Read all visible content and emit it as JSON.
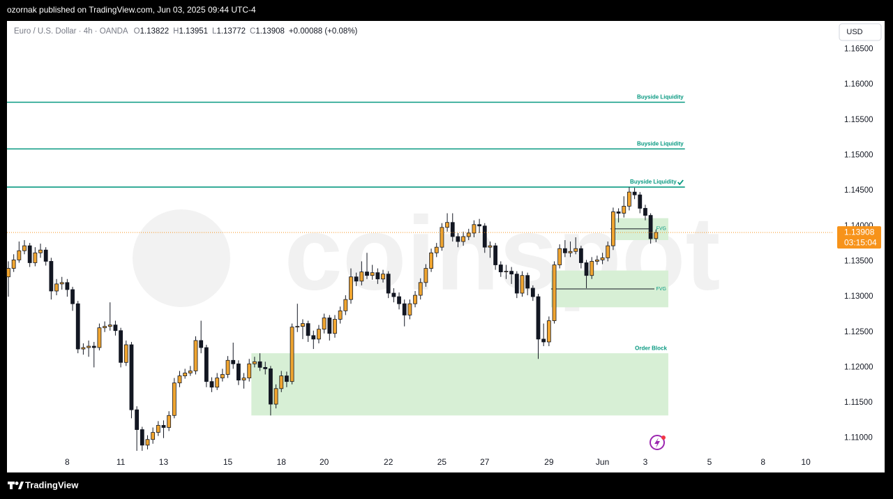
{
  "top_bar": {
    "text": "ozornak published on TradingView.com, Jun 03, 2025 09:44 UTC-4"
  },
  "bottom_bar": {
    "brand": "TradingView"
  },
  "currency_button": "USD",
  "chart_data": {
    "type": "candlestick",
    "symbol": "Euro / U.S. Dollar · 4h · OANDA",
    "ohlc_labels": [
      "O",
      "H",
      "L",
      "C"
    ],
    "change": "+0.00088 (+0.08%)",
    "countdown": "03:15:04",
    "watermark": "coinspot",
    "up_color": "#f0a530",
    "down_color": "#131722",
    "last_price_color": "#f7931a",
    "grid": false,
    "ohlc": [
      [
        1.1328,
        1.135,
        1.13,
        1.134
      ],
      [
        1.134,
        1.136,
        1.1335,
        1.1352
      ],
      [
        1.1352,
        1.1378,
        1.1348,
        1.1365
      ],
      [
        1.1365,
        1.138,
        1.136,
        1.1372
      ],
      [
        1.1372,
        1.1376,
        1.1342,
        1.1348
      ],
      [
        1.1348,
        1.137,
        1.1343,
        1.1362
      ],
      [
        1.1362,
        1.1375,
        1.1355,
        1.1366
      ],
      [
        1.1366,
        1.137,
        1.1344,
        1.135
      ],
      [
        1.135,
        1.1355,
        1.1296,
        1.1308
      ],
      [
        1.1308,
        1.1325,
        1.1302,
        1.1318
      ],
      [
        1.1318,
        1.1328,
        1.131,
        1.132
      ],
      [
        1.132,
        1.1325,
        1.13,
        1.131
      ],
      [
        1.131,
        1.1314,
        1.128,
        1.129
      ],
      [
        1.129,
        1.1294,
        1.122,
        1.1226
      ],
      [
        1.1226,
        1.1234,
        1.1218,
        1.1228
      ],
      [
        1.1228,
        1.1238,
        1.1215,
        1.123
      ],
      [
        1.123,
        1.1236,
        1.12,
        1.1228
      ],
      [
        1.1228,
        1.1262,
        1.1224,
        1.1256
      ],
      [
        1.1256,
        1.1265,
        1.125,
        1.1258
      ],
      [
        1.1258,
        1.1292,
        1.1252,
        1.126
      ],
      [
        1.126,
        1.1266,
        1.1245,
        1.1252
      ],
      [
        1.1252,
        1.1256,
        1.12,
        1.1207
      ],
      [
        1.1207,
        1.1238,
        1.1202,
        1.1232
      ],
      [
        1.1232,
        1.1236,
        1.1128,
        1.114
      ],
      [
        1.114,
        1.1145,
        1.1082,
        1.1112
      ],
      [
        1.1112,
        1.1116,
        1.1082,
        1.109
      ],
      [
        1.109,
        1.1104,
        1.1084,
        1.1098
      ],
      [
        1.1098,
        1.1115,
        1.1092,
        1.1108
      ],
      [
        1.1108,
        1.1124,
        1.1103,
        1.1118
      ],
      [
        1.1118,
        1.1125,
        1.11,
        1.1115
      ],
      [
        1.1115,
        1.1138,
        1.111,
        1.1132
      ],
      [
        1.1132,
        1.1185,
        1.1128,
        1.1178
      ],
      [
        1.1178,
        1.1195,
        1.1172,
        1.1188
      ],
      [
        1.1188,
        1.1198,
        1.1184,
        1.1192
      ],
      [
        1.1192,
        1.1202,
        1.1188,
        1.1195
      ],
      [
        1.1195,
        1.1244,
        1.119,
        1.1238
      ],
      [
        1.1238,
        1.1266,
        1.122,
        1.1228
      ],
      [
        1.1228,
        1.1232,
        1.1172,
        1.118
      ],
      [
        1.118,
        1.1186,
        1.1165,
        1.1172
      ],
      [
        1.1172,
        1.1192,
        1.1168,
        1.1185
      ],
      [
        1.1185,
        1.1198,
        1.118,
        1.119
      ],
      [
        1.119,
        1.1216,
        1.1185,
        1.121
      ],
      [
        1.121,
        1.1235,
        1.1198,
        1.1205
      ],
      [
        1.1205,
        1.121,
        1.1175,
        1.1182
      ],
      [
        1.1182,
        1.1192,
        1.117,
        1.1185
      ],
      [
        1.1185,
        1.1212,
        1.118,
        1.1205
      ],
      [
        1.1205,
        1.1215,
        1.12,
        1.1208
      ],
      [
        1.1208,
        1.122,
        1.1195,
        1.12
      ],
      [
        1.12,
        1.1208,
        1.119,
        1.1198
      ],
      [
        1.1198,
        1.1202,
        1.1132,
        1.1148
      ],
      [
        1.1148,
        1.1176,
        1.1142,
        1.117
      ],
      [
        1.117,
        1.1195,
        1.1165,
        1.1188
      ],
      [
        1.1188,
        1.1194,
        1.1172,
        1.118
      ],
      [
        1.118,
        1.1262,
        1.1176,
        1.1257
      ],
      [
        1.1257,
        1.129,
        1.125,
        1.1258
      ],
      [
        1.1258,
        1.1268,
        1.124,
        1.1262
      ],
      [
        1.1262,
        1.1266,
        1.1236,
        1.1245
      ],
      [
        1.1245,
        1.1252,
        1.1226,
        1.124
      ],
      [
        1.124,
        1.126,
        1.1234,
        1.1254
      ],
      [
        1.1254,
        1.1276,
        1.1248,
        1.127
      ],
      [
        1.127,
        1.1274,
        1.1238,
        1.1248
      ],
      [
        1.1248,
        1.1274,
        1.1242,
        1.1268
      ],
      [
        1.1268,
        1.1286,
        1.1262,
        1.128
      ],
      [
        1.128,
        1.1302,
        1.1274,
        1.1296
      ],
      [
        1.1296,
        1.134,
        1.129,
        1.1328
      ],
      [
        1.1328,
        1.1334,
        1.1315,
        1.1322
      ],
      [
        1.1322,
        1.135,
        1.1316,
        1.1335
      ],
      [
        1.1335,
        1.1362,
        1.1325,
        1.133
      ],
      [
        1.133,
        1.1345,
        1.1324,
        1.1334
      ],
      [
        1.1334,
        1.134,
        1.1318,
        1.1325
      ],
      [
        1.1325,
        1.1338,
        1.132,
        1.1332
      ],
      [
        1.1332,
        1.1336,
        1.1298,
        1.1305
      ],
      [
        1.1305,
        1.1312,
        1.1292,
        1.13
      ],
      [
        1.13,
        1.1306,
        1.1282,
        1.129
      ],
      [
        1.129,
        1.1296,
        1.1258,
        1.1274
      ],
      [
        1.1274,
        1.1296,
        1.1268,
        1.129
      ],
      [
        1.129,
        1.1308,
        1.1285,
        1.1302
      ],
      [
        1.1302,
        1.1326,
        1.1296,
        1.132
      ],
      [
        1.132,
        1.1346,
        1.1314,
        1.134
      ],
      [
        1.134,
        1.1368,
        1.1335,
        1.1362
      ],
      [
        1.1362,
        1.1376,
        1.1356,
        1.137
      ],
      [
        1.137,
        1.1404,
        1.1365,
        1.1398
      ],
      [
        1.1398,
        1.1418,
        1.1392,
        1.1405
      ],
      [
        1.1405,
        1.1418,
        1.1378,
        1.1385
      ],
      [
        1.1385,
        1.139,
        1.137,
        1.1378
      ],
      [
        1.1378,
        1.1392,
        1.1372,
        1.1385
      ],
      [
        1.1385,
        1.1396,
        1.138,
        1.139
      ],
      [
        1.139,
        1.1408,
        1.1384,
        1.1402
      ],
      [
        1.1402,
        1.141,
        1.139,
        1.14
      ],
      [
        1.14,
        1.1404,
        1.1362,
        1.137
      ],
      [
        1.137,
        1.1378,
        1.1355,
        1.1372
      ],
      [
        1.1372,
        1.1376,
        1.1338,
        1.1345
      ],
      [
        1.1345,
        1.135,
        1.1328,
        1.1335
      ],
      [
        1.1335,
        1.1345,
        1.1325,
        1.1336
      ],
      [
        1.1336,
        1.1342,
        1.1318,
        1.1332
      ],
      [
        1.1332,
        1.1336,
        1.1298,
        1.1305
      ],
      [
        1.1305,
        1.1336,
        1.13,
        1.133
      ],
      [
        1.133,
        1.1334,
        1.1302,
        1.1312
      ],
      [
        1.1312,
        1.1316,
        1.1294,
        1.13
      ],
      [
        1.13,
        1.1304,
        1.1212,
        1.124
      ],
      [
        1.124,
        1.1262,
        1.123,
        1.1236
      ],
      [
        1.1236,
        1.1272,
        1.123,
        1.1266
      ],
      [
        1.1266,
        1.135,
        1.1262,
        1.1345
      ],
      [
        1.1345,
        1.1374,
        1.134,
        1.1368
      ],
      [
        1.1368,
        1.138,
        1.1356,
        1.1362
      ],
      [
        1.1362,
        1.1378,
        1.1356,
        1.1364
      ],
      [
        1.1364,
        1.1384,
        1.136,
        1.1368
      ],
      [
        1.1368,
        1.1372,
        1.134,
        1.1348
      ],
      [
        1.1348,
        1.1352,
        1.1312,
        1.133
      ],
      [
        1.133,
        1.1356,
        1.1325,
        1.135
      ],
      [
        1.135,
        1.1358,
        1.1345,
        1.1352
      ],
      [
        1.1352,
        1.1362,
        1.1346,
        1.1355
      ],
      [
        1.1355,
        1.1378,
        1.135,
        1.1372
      ],
      [
        1.1372,
        1.1426,
        1.1366,
        1.142
      ],
      [
        1.142,
        1.1425,
        1.1405,
        1.1418
      ],
      [
        1.1418,
        1.1442,
        1.1412,
        1.1428
      ],
      [
        1.1428,
        1.1455,
        1.1422,
        1.1448
      ],
      [
        1.1448,
        1.1454,
        1.1438,
        1.1444
      ],
      [
        1.1444,
        1.1448,
        1.1418,
        1.1425
      ],
      [
        1.1425,
        1.143,
        1.1408,
        1.1415
      ],
      [
        1.1415,
        1.1418,
        1.1375,
        1.1382
      ],
      [
        1.13822,
        1.13951,
        1.13772,
        1.13908
      ]
    ],
    "xlim": [
      -0.26,
      154.2
    ],
    "xticks": [
      {
        "value": 11,
        "label": "8"
      },
      {
        "value": 21,
        "label": "11"
      },
      {
        "value": 29,
        "label": "13"
      },
      {
        "value": 41,
        "label": "15"
      },
      {
        "value": 51,
        "label": "18"
      },
      {
        "value": 59,
        "label": "20"
      },
      {
        "value": 71,
        "label": "22"
      },
      {
        "value": 81,
        "label": "25"
      },
      {
        "value": 89,
        "label": "27"
      },
      {
        "value": 101,
        "label": "29"
      },
      {
        "value": 111,
        "label": "Jun"
      },
      {
        "value": 119,
        "label": "3"
      },
      {
        "value": 131,
        "label": "5"
      },
      {
        "value": 141,
        "label": "8"
      },
      {
        "value": 149,
        "label": "10"
      }
    ],
    "ylim": [
      1.1078,
      1.169
    ],
    "yticks": [
      {
        "value": 1.11,
        "label": "1.11000"
      },
      {
        "value": 1.115,
        "label": "1.11500"
      },
      {
        "value": 1.12,
        "label": "1.12000"
      },
      {
        "value": 1.125,
        "label": "1.12500"
      },
      {
        "value": 1.13,
        "label": "1.13000"
      },
      {
        "value": 1.135,
        "label": "1.13500"
      },
      {
        "value": 1.14,
        "label": "1.14000"
      },
      {
        "value": 1.145,
        "label": "1.14500"
      },
      {
        "value": 1.15,
        "label": "1.15000"
      },
      {
        "value": 1.155,
        "label": "1.15500"
      },
      {
        "value": 1.16,
        "label": "1.16000"
      },
      {
        "value": 1.165,
        "label": "1.16500"
      }
    ],
    "levels": [
      {
        "label": "Buyside Liquidity",
        "price": 1.1575,
        "x1": 126.4,
        "color": "#089981"
      },
      {
        "label": "Buyside Liquidity",
        "price": 1.1509,
        "x1": 126.4,
        "color": "#089981"
      },
      {
        "label": "Buyside Liquidity",
        "price": 1.1455,
        "x1": 126.4,
        "color": "#089981"
      }
    ],
    "zones": [
      {
        "label": "Order Block",
        "x0": 45.4,
        "x1": 123.3,
        "top": 1.122,
        "bottom": 1.1132,
        "color": "#d7efd5"
      },
      {
        "label": "FVG",
        "x0": 101.4,
        "x1": 123.3,
        "top": 1.1337,
        "bottom": 1.1285,
        "level": 1.1311,
        "line_x0": 101.4,
        "line_x1": 120.7,
        "color": "#d7efd5"
      },
      {
        "label": "FVG",
        "x0": 113.2,
        "x1": 123.3,
        "top": 1.1411,
        "bottom": 1.138,
        "level": 1.1396,
        "line_x0": 112.5,
        "line_x1": 119.7,
        "color": "#d7efd5"
      }
    ]
  }
}
